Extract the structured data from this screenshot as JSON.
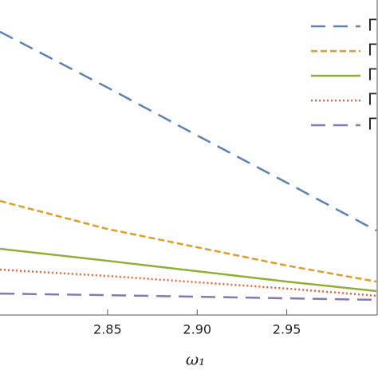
{
  "chart_data": {
    "type": "line",
    "x_label": "ω₁",
    "x": [
      2.79,
      2.85,
      2.9,
      2.95,
      3.0
    ],
    "xlim": [
      2.79,
      3.0
    ],
    "xticks": [
      2.85,
      {
        "value": 2.9,
        "label": "2.90"
      },
      2.95
    ],
    "ylim": [
      0,
      10
    ],
    "series": [
      {
        "name": "Γ",
        "color": "#5e81b5",
        "dash": "18 10",
        "values": [
          8.99,
          7.22,
          5.7,
          4.2,
          2.68
        ]
      },
      {
        "name": "Γ",
        "color": "#e19c24",
        "dash": "8 4",
        "values": [
          3.62,
          2.73,
          2.15,
          1.57,
          1.06
        ]
      },
      {
        "name": "Γ",
        "color": "#8fb032",
        "dash": "none",
        "values": [
          2.1,
          1.72,
          1.39,
          1.06,
          0.76
        ]
      },
      {
        "name": "Γ",
        "color": "#eb6235",
        "dash": "2 3",
        "values": [
          1.44,
          1.24,
          1.04,
          0.84,
          0.61
        ]
      },
      {
        "name": "Γ",
        "color": "#8778b3",
        "dash": "18 10",
        "values": [
          0.68,
          0.63,
          0.58,
          0.53,
          0.48
        ]
      }
    ]
  }
}
